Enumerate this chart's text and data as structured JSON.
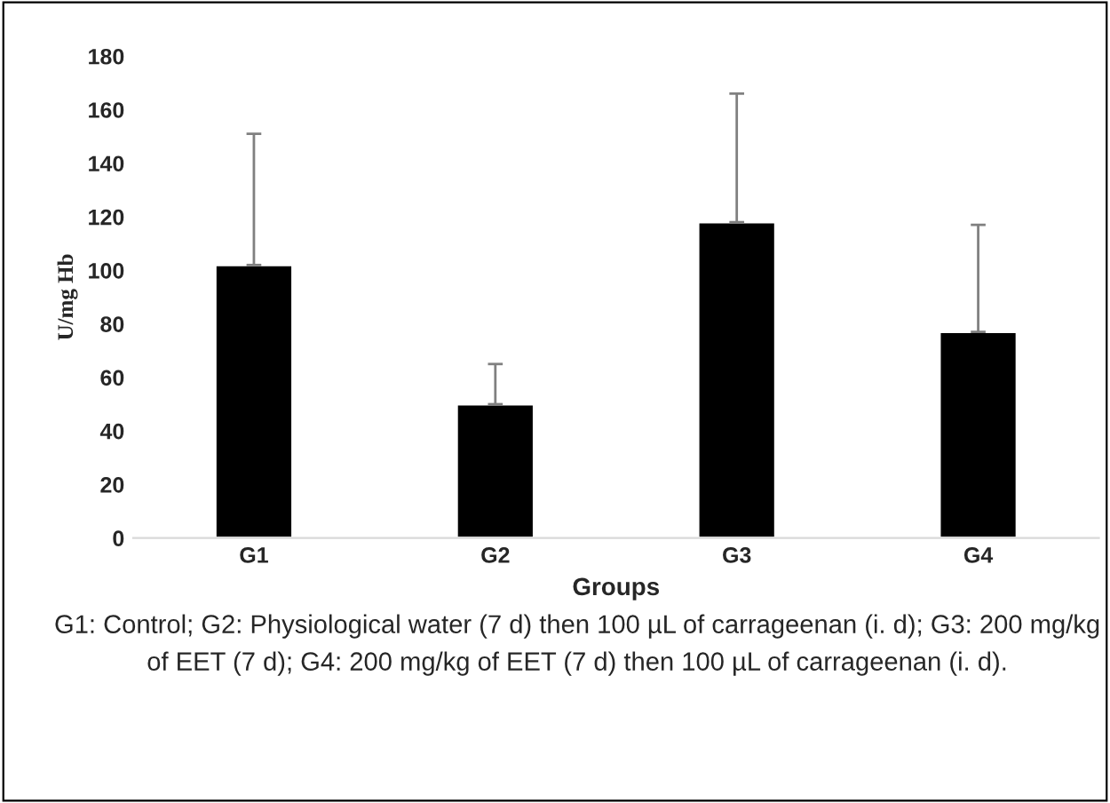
{
  "chart_data": {
    "type": "bar",
    "xlabel": "Groups",
    "ylabel": "U/mg Hb",
    "categories": [
      "G1",
      "G2",
      "G3",
      "G4"
    ],
    "values": [
      102,
      50,
      118,
      77
    ],
    "errors": [
      [
        102,
        151
      ],
      [
        50,
        65
      ],
      [
        118,
        166
      ],
      [
        77,
        117
      ]
    ],
    "color": "#000000",
    "ylim": [
      0,
      180
    ],
    "yticks": [
      0,
      20,
      40,
      60,
      80,
      100,
      120,
      140,
      160,
      180
    ],
    "grid": false,
    "annotations": [
      "G1: Control; G2: Physiological water (7 d) then 100 µL of carrageenan (i. d); G3: 200 mg/kg of EET (7 d); G4: 200 mg/kg of EET (7 d) then 100 µL of carrageenan (i. d)."
    ]
  }
}
